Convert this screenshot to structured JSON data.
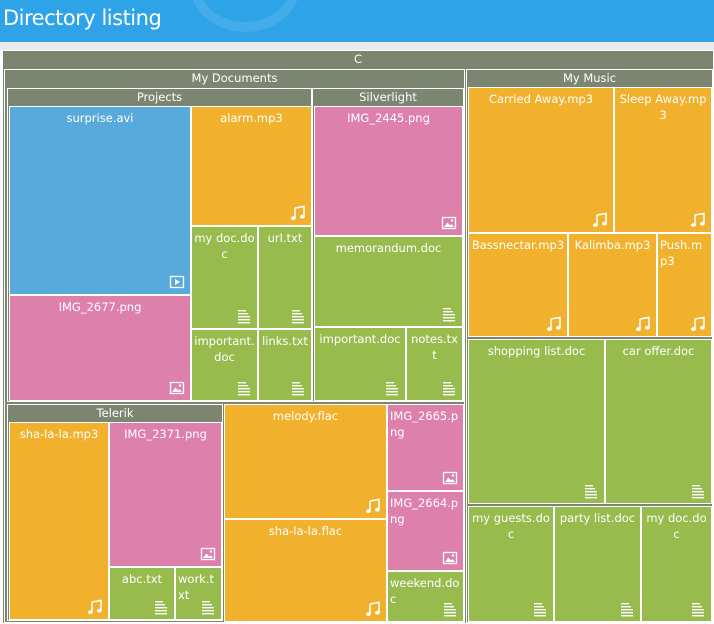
{
  "header": {
    "title": "Directory listing"
  },
  "colors": {
    "header": "#2ea3e8",
    "group": "#7c8570",
    "audio": "#f1b12c",
    "video": "#58a9dc",
    "image": "#dd80ab",
    "document": "#98bb4e"
  },
  "root": {
    "name": "C"
  },
  "groups": {
    "my_documents": "My Documents",
    "projects": "Projects",
    "silverlight": "Silverlight",
    "telerik": "Telerik",
    "my_music": "My Music"
  },
  "files": {
    "surprise_avi": {
      "name": "surprise.avi",
      "icon": "video-icon"
    },
    "alarm_mp3": {
      "name": "alarm.mp3",
      "icon": "music-note-icon"
    },
    "my_doc_doc_projects": {
      "name": "my doc.doc",
      "icon": "document-icon"
    },
    "url_txt": {
      "name": "url.txt",
      "icon": "document-icon"
    },
    "img_2677_png": {
      "name": "IMG_2677.png",
      "icon": "image-icon"
    },
    "important_doc_projects": {
      "name": "important.doc",
      "icon": "document-icon"
    },
    "links_txt": {
      "name": "links.txt",
      "icon": "document-icon"
    },
    "img_2445_png": {
      "name": "IMG_2445.png",
      "icon": "image-icon"
    },
    "memorandum_doc": {
      "name": "memorandum.doc",
      "icon": "document-icon"
    },
    "important_doc_silverlight": {
      "name": "important.doc",
      "icon": "document-icon"
    },
    "notes_txt": {
      "name": "notes.txt",
      "icon": "document-icon"
    },
    "sha_la_la_mp3": {
      "name": "sha-la-la.mp3",
      "icon": "music-note-icon"
    },
    "img_2371_png": {
      "name": "IMG_2371.png",
      "icon": "image-icon"
    },
    "abc_txt": {
      "name": "abc.txt",
      "icon": "document-icon"
    },
    "work_txt": {
      "name": "work.txt",
      "icon": "document-icon"
    },
    "melody_flac": {
      "name": "melody.flac",
      "icon": "music-note-icon"
    },
    "sha_la_la_flac": {
      "name": "sha-la-la.flac",
      "icon": "music-note-icon"
    },
    "img_2665_png": {
      "name": "IMG_2665.png",
      "icon": "image-icon"
    },
    "img_2664_png": {
      "name": "IMG_2664.png",
      "icon": "image-icon"
    },
    "weekend_doc": {
      "name": "weekend.doc",
      "icon": "document-icon"
    },
    "carried_away_mp3": {
      "name": "Carried Away.mp3",
      "icon": "music-note-icon"
    },
    "sleep_away_mp3": {
      "name": "Sleep Away.mp3",
      "icon": "music-note-icon"
    },
    "bassnectar_mp3": {
      "name": "Bassnectar.mp3",
      "icon": "music-note-icon"
    },
    "kalimba_mp3": {
      "name": "Kalimba.mp3",
      "icon": "music-note-icon"
    },
    "push_mp3": {
      "name": "Push.mp3",
      "icon": "music-note-icon"
    },
    "shopping_list_doc": {
      "name": "shopping list.doc",
      "icon": "document-icon"
    },
    "car_offer_doc": {
      "name": "car offer.doc",
      "icon": "document-icon"
    },
    "my_guests_doc": {
      "name": "my guests.doc",
      "icon": "document-icon"
    },
    "party_list_doc": {
      "name": "party list.doc",
      "icon": "document-icon"
    },
    "my_doc_doc_music": {
      "name": "my doc.doc",
      "icon": "document-icon"
    }
  }
}
